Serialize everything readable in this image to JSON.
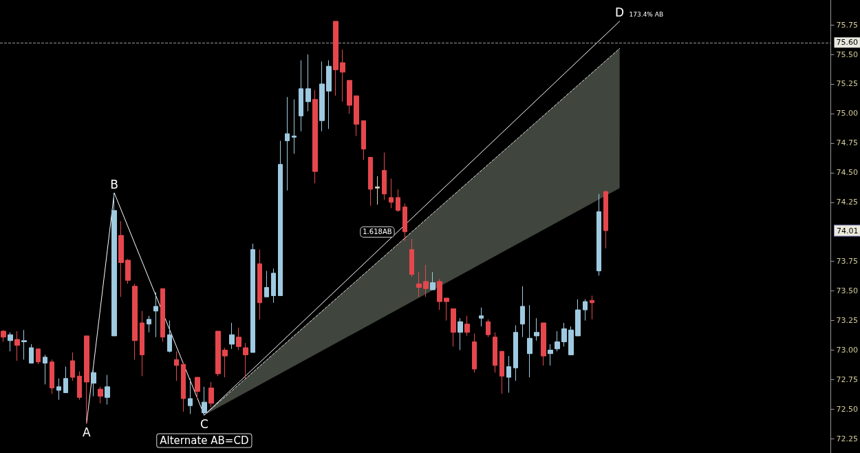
{
  "chart_data": {
    "type": "candlestick",
    "categories": [
      null,
      null,
      null,
      null,
      null,
      null,
      null,
      null,
      null,
      null,
      null,
      null,
      null,
      null,
      null,
      null,
      null,
      null,
      null,
      null,
      null,
      null,
      null,
      null,
      null,
      null,
      null,
      null,
      null,
      null,
      null,
      null,
      null,
      null,
      null,
      null,
      null,
      null,
      null,
      null,
      null,
      null,
      null,
      null,
      null,
      null,
      null,
      null,
      null,
      null,
      null,
      null,
      null,
      null,
      null,
      null,
      null,
      null,
      null,
      null,
      null,
      null,
      null,
      null,
      null,
      null,
      null,
      null,
      null,
      null,
      null,
      null,
      null,
      null,
      null,
      null,
      null,
      null,
      null,
      null,
      null,
      null,
      null,
      null,
      null,
      null,
      null,
      null,
      null,
      null,
      null,
      null,
      null,
      null,
      null,
      null,
      null,
      null,
      null,
      null,
      null,
      null,
      null,
      null,
      null,
      null,
      null,
      null,
      null,
      null,
      null,
      null,
      null,
      null,
      null,
      null,
      null,
      null,
      null,
      null
    ],
    "ylim": [
      72.13,
      75.96
    ],
    "yticks": [
      72.25,
      {
        "value": 72.5,
        "label": "72.50"
      },
      72.75,
      {
        "value": 73,
        "label": "73.00"
      },
      73.25,
      {
        "value": 73.5,
        "label": "73.50"
      },
      73.75,
      74.25,
      {
        "value": 74.5,
        "label": "74.50"
      },
      74.75,
      {
        "value": 75,
        "label": "75.00"
      },
      75.25,
      {
        "value": 75.5,
        "label": "75.50"
      },
      75.75
    ],
    "tick_labels": "y",
    "grid": false,
    "marker": "none",
    "series": [
      {
        "ohlc": [
          [
            73.16,
            73.17,
            73.07,
            73.11
          ],
          [
            73.08,
            73.15,
            72.99,
            73.13
          ],
          [
            73.09,
            73.16,
            72.91,
            73.04
          ],
          [
            73.07,
            73.17,
            72.92,
            73.08
          ],
          [
            72.89,
            73.05,
            72.89,
            73.02
          ],
          [
            73.01,
            73.01,
            72.88,
            72.9
          ],
          [
            72.89,
            72.96,
            72.71,
            72.94
          ],
          [
            72.9,
            72.92,
            72.63,
            72.68
          ],
          [
            72.66,
            72.76,
            72.58,
            72.69
          ],
          [
            72.64,
            72.86,
            72.64,
            72.76
          ],
          [
            72.91,
            72.98,
            72.74,
            72.77
          ],
          [
            72.78,
            72.82,
            72.58,
            72.6
          ],
          [
            73.12,
            73.12,
            72.38,
            72.73
          ],
          [
            72.72,
            72.84,
            72.61,
            72.81
          ],
          [
            72.67,
            72.69,
            72.55,
            72.61
          ],
          [
            72.6,
            72.79,
            72.54,
            72.69
          ],
          [
            73.12,
            74.33,
            73.12,
            74.18
          ],
          [
            73.97,
            74.09,
            73.45,
            73.74
          ],
          [
            73.76,
            73.77,
            73.56,
            73.59
          ],
          [
            73.54,
            73.56,
            72.92,
            73.08
          ],
          [
            73.23,
            73.33,
            72.78,
            72.96
          ],
          [
            73.22,
            73.29,
            73.15,
            73.26
          ],
          [
            73.33,
            73.49,
            73.11,
            73.37
          ],
          [
            73.52,
            73.52,
            73.07,
            73.11
          ],
          [
            72.99,
            73.25,
            72.98,
            73.13
          ],
          [
            72.92,
            72.99,
            72.74,
            72.87
          ],
          [
            72.88,
            72.89,
            72.48,
            72.59
          ],
          [
            72.53,
            72.76,
            72.46,
            72.59
          ],
          [
            72.77,
            72.77,
            72.59,
            72.65
          ],
          [
            72.47,
            72.69,
            72.45,
            72.56
          ],
          [
            72.68,
            72.73,
            72.52,
            72.55
          ],
          [
            73.16,
            73.16,
            72.78,
            72.8
          ],
          [
            73.0,
            73.02,
            72.77,
            72.95
          ],
          [
            73.05,
            73.23,
            73.01,
            73.13
          ],
          [
            73.11,
            73.19,
            73.0,
            73.03
          ],
          [
            73.02,
            73.06,
            72.76,
            72.96
          ],
          [
            72.98,
            73.9,
            72.98,
            73.85
          ],
          [
            73.73,
            73.85,
            73.26,
            73.4
          ],
          [
            73.45,
            73.67,
            73.45,
            73.53
          ],
          [
            73.46,
            73.69,
            73.4,
            73.65
          ],
          [
            73.46,
            74.77,
            73.46,
            74.57
          ],
          [
            74.77,
            75.14,
            74.35,
            74.83
          ],
          [
            74.8,
            75.12,
            74.66,
            74.81
          ],
          [
            74.98,
            75.45,
            74.85,
            75.21
          ],
          [
            75.1,
            75.5,
            75.02,
            75.21
          ],
          [
            75.12,
            75.2,
            74.41,
            74.51
          ],
          [
            74.94,
            75.44,
            74.85,
            75.25
          ],
          [
            75.19,
            75.45,
            74.87,
            75.4
          ],
          [
            75.78,
            75.78,
            75.15,
            75.37
          ],
          [
            75.43,
            75.54,
            75.1,
            75.35
          ],
          [
            75.28,
            75.28,
            75.0,
            75.07
          ],
          [
            75.15,
            75.15,
            74.81,
            74.91
          ],
          [
            74.94,
            74.94,
            74.61,
            74.7
          ],
          [
            74.63,
            74.63,
            74.22,
            74.36
          ],
          [
            74.37,
            74.47,
            74.23,
            74.38
          ],
          [
            74.52,
            74.67,
            74.27,
            74.32
          ],
          [
            74.29,
            74.45,
            74.2,
            74.25
          ],
          [
            74.29,
            74.36,
            74.17,
            74.18
          ],
          [
            74.21,
            74.24,
            73.92,
            74.0
          ],
          [
            73.85,
            73.94,
            73.62,
            73.64
          ],
          [
            73.56,
            73.66,
            73.45,
            73.53
          ],
          [
            73.58,
            73.72,
            73.45,
            73.52
          ],
          [
            73.51,
            73.66,
            73.51,
            73.57
          ],
          [
            73.58,
            73.6,
            73.34,
            73.41
          ],
          [
            73.44,
            73.44,
            73.25,
            73.41
          ],
          [
            73.35,
            73.35,
            73.03,
            73.15
          ],
          [
            73.15,
            73.27,
            73.0,
            73.24
          ],
          [
            73.22,
            73.29,
            73.12,
            73.15
          ],
          [
            73.07,
            73.14,
            72.81,
            72.84
          ],
          [
            73.27,
            73.36,
            73.2,
            73.29
          ],
          [
            73.24,
            73.26,
            73.11,
            73.13
          ],
          [
            73.11,
            73.15,
            72.81,
            72.87
          ],
          [
            72.99,
            72.99,
            72.63,
            72.78
          ],
          [
            72.77,
            72.95,
            72.64,
            72.86
          ],
          [
            72.85,
            73.21,
            72.74,
            73.15
          ],
          [
            73.22,
            73.54,
            73.11,
            73.37
          ],
          [
            72.97,
            73.38,
            72.77,
            73.1
          ],
          [
            73.12,
            73.27,
            73.08,
            73.15
          ],
          [
            73.23,
            73.23,
            72.87,
            72.95
          ],
          [
            72.97,
            73.05,
            72.87,
            73.0
          ],
          [
            73.01,
            73.16,
            72.99,
            73.07
          ],
          [
            73.07,
            73.23,
            73.03,
            73.18
          ],
          [
            72.96,
            73.2,
            72.96,
            73.17
          ],
          [
            73.12,
            73.43,
            73.12,
            73.34
          ],
          [
            73.34,
            73.43,
            73.25,
            73.41
          ],
          [
            73.42,
            73.46,
            73.26,
            73.4
          ],
          [
            73.67,
            74.32,
            73.63,
            74.17
          ],
          [
            74.34,
            74.35,
            73.86,
            74.01
          ],
          null,
          null,
          null,
          null,
          null,
          null,
          null,
          null,
          null,
          null,
          null,
          null,
          null,
          null,
          null,
          null,
          null,
          null,
          null,
          null,
          null,
          null,
          null,
          null,
          null,
          null,
          null,
          null,
          null,
          null,
          null,
          null
        ],
        "colors": [
          "#e5474d",
          "#9ecae1",
          "#e5474d",
          "#9ecae1",
          "#9ecae1",
          "#e5474d",
          "#9ecae1",
          "#e5474d",
          "#9ecae1",
          "#9ecae1",
          "#e5474d",
          "#e5474d",
          "#e5474d",
          "#9ecae1",
          "#e5474d",
          "#9ecae1",
          "#9ecae1",
          "#e5474d",
          "#e5474d",
          "#e5474d",
          "#e5474d",
          "#9ecae1",
          "#9ecae1",
          "#e5474d",
          "#9ecae1",
          "#e5474d",
          "#e5474d",
          "#9ecae1",
          "#e5474d",
          "#9ecae1",
          "#e5474d",
          "#e5474d",
          "#e5474d",
          "#9ecae1",
          "#e5474d",
          "#e5474d",
          "#9ecae1",
          "#e5474d",
          "#9ecae1",
          "#9ecae1",
          "#9ecae1",
          "#9ecae1",
          "#9ecae1",
          "#9ecae1",
          "#9ecae1",
          "#e5474d",
          "#9ecae1",
          "#9ecae1",
          "#e5474d",
          "#e5474d",
          "#e5474d",
          "#e5474d",
          "#e5474d",
          "#e5474d",
          "#d8d4c0",
          "#e5474d",
          "#e5474d",
          "#e5474d",
          "#e5474d",
          "#e5474d",
          "#e5474d",
          "#e5474d",
          "#9ecae1",
          "#e5474d",
          "#e5474d",
          "#e5474d",
          "#9ecae1",
          "#e5474d",
          "#e5474d",
          "#9ecae1",
          "#e5474d",
          "#e5474d",
          "#e5474d",
          "#9ecae1",
          "#9ecae1",
          "#9ecae1",
          "#9ecae1",
          "#9ecae1",
          "#e5474d",
          "#9ecae1",
          "#9ecae1",
          "#9ecae1",
          "#9ecae1",
          "#9ecae1",
          "#9ecae1",
          "#e5474d",
          "#9ecae1",
          "#e5474d",
          null,
          null,
          null,
          null,
          null,
          null,
          null,
          null,
          null,
          null,
          null,
          null,
          null,
          null,
          null,
          null,
          null,
          null,
          null,
          null,
          null,
          null,
          null,
          null,
          null,
          null,
          null,
          null,
          null,
          null,
          null,
          null
        ]
      },
      {
        "type": "line",
        "color": "#ffffff",
        "line_style": "solid",
        "values": [
          null,
          null,
          null,
          null,
          null,
          null,
          null,
          null,
          null,
          null,
          null,
          null,
          72.38,
          null,
          null,
          null,
          74.33,
          null,
          null,
          null,
          null,
          null,
          null,
          null,
          null,
          null,
          null,
          null,
          null,
          72.45,
          null,
          null,
          null,
          null,
          null,
          null,
          null,
          null,
          null,
          null,
          null,
          null,
          null,
          null,
          null,
          null,
          null,
          null,
          null,
          null,
          null,
          null,
          null,
          null,
          null,
          null,
          null,
          null,
          null,
          null,
          null,
          null,
          null,
          null,
          null,
          null,
          null,
          null,
          null,
          null,
          null,
          null,
          null,
          null,
          null,
          null,
          null,
          null,
          null,
          null,
          null,
          null,
          null,
          null,
          null,
          null,
          null,
          null,
          null,
          75.78,
          null,
          null,
          null,
          null,
          null,
          null,
          null,
          null,
          null,
          null,
          null,
          null,
          null,
          null,
          null,
          null,
          null,
          null,
          null,
          null,
          null,
          null,
          null,
          null,
          null,
          null,
          null,
          null,
          null,
          null
        ],
        "value_labels": [
          null,
          null,
          null,
          null,
          null,
          null,
          null,
          null,
          null,
          null,
          null,
          null,
          "A",
          null,
          null,
          null,
          "B",
          null,
          null,
          null,
          null,
          null,
          null,
          null,
          null,
          null,
          null,
          null,
          null,
          "C",
          null,
          null,
          null,
          null,
          null,
          null,
          null,
          null,
          null,
          null,
          null,
          null,
          null,
          null,
          null,
          null,
          null,
          null,
          null,
          null,
          null,
          null,
          null,
          null,
          null,
          null,
          null,
          null,
          null,
          null,
          null,
          null,
          null,
          null,
          null,
          null,
          null,
          null,
          null,
          null,
          null,
          null,
          null,
          null,
          null,
          null,
          null,
          null,
          null,
          null,
          null,
          null,
          null,
          null,
          null,
          null,
          null,
          null,
          null,
          "D",
          null,
          null,
          null,
          null,
          null,
          null,
          null,
          null,
          null,
          null,
          null,
          null,
          null,
          null,
          null,
          null,
          null,
          null,
          null,
          null,
          null,
          null,
          null,
          null,
          null,
          null,
          null,
          null,
          null,
          null
        ]
      },
      {
        "type": "line",
        "color": "#e0e0e0",
        "line_style": "dashed",
        "values": [
          null,
          null,
          null,
          null,
          null,
          null,
          null,
          null,
          null,
          null,
          null,
          null,
          null,
          null,
          null,
          null,
          null,
          null,
          null,
          null,
          null,
          null,
          null,
          null,
          null,
          null,
          null,
          null,
          null,
          72.45,
          null,
          null,
          null,
          null,
          null,
          null,
          null,
          null,
          null,
          null,
          null,
          null,
          null,
          null,
          null,
          null,
          null,
          null,
          null,
          null,
          null,
          null,
          null,
          null,
          null,
          null,
          null,
          null,
          null,
          null,
          null,
          null,
          null,
          null,
          null,
          null,
          null,
          null,
          null,
          null,
          null,
          null,
          null,
          null,
          null,
          null,
          null,
          null,
          null,
          null,
          null,
          null,
          null,
          null,
          null,
          null,
          null,
          null,
          null,
          75.55,
          null,
          null,
          null,
          null,
          null,
          null,
          null,
          null,
          null,
          null,
          null,
          null,
          null,
          null,
          null,
          null,
          null,
          null,
          null,
          null,
          null,
          null,
          null,
          null,
          null,
          null,
          null,
          null,
          null,
          null
        ],
        "lower": [
          null,
          null,
          null,
          null,
          null,
          null,
          null,
          null,
          null,
          null,
          null,
          null,
          null,
          null,
          null,
          null,
          null,
          null,
          null,
          null,
          null,
          null,
          null,
          null,
          null,
          null,
          null,
          null,
          null,
          72.45,
          null,
          null,
          null,
          null,
          null,
          null,
          null,
          null,
          null,
          null,
          null,
          null,
          null,
          null,
          null,
          null,
          null,
          null,
          null,
          null,
          null,
          null,
          null,
          null,
          null,
          null,
          null,
          null,
          null,
          null,
          null,
          null,
          null,
          null,
          null,
          null,
          null,
          null,
          null,
          null,
          null,
          null,
          null,
          null,
          null,
          null,
          null,
          null,
          null,
          null,
          null,
          null,
          null,
          null,
          null,
          null,
          null,
          null,
          null,
          74.37,
          null,
          null,
          null,
          null,
          null,
          null,
          null,
          null,
          null,
          null,
          null,
          null,
          null,
          null,
          null,
          null,
          null,
          null,
          null,
          null,
          null,
          null,
          null,
          null,
          null,
          null,
          null,
          null,
          null,
          null
        ],
        "upper": [
          null,
          null,
          null,
          null,
          null,
          null,
          null,
          null,
          null,
          null,
          null,
          null,
          null,
          null,
          null,
          null,
          null,
          null,
          null,
          null,
          null,
          null,
          null,
          null,
          null,
          null,
          null,
          null,
          null,
          72.45,
          null,
          null,
          null,
          null,
          null,
          null,
          null,
          null,
          null,
          null,
          null,
          null,
          null,
          null,
          null,
          null,
          null,
          null,
          null,
          null,
          null,
          null,
          null,
          null,
          null,
          null,
          null,
          null,
          null,
          null,
          null,
          null,
          null,
          null,
          null,
          null,
          null,
          null,
          null,
          null,
          null,
          null,
          null,
          null,
          null,
          null,
          null,
          null,
          null,
          null,
          null,
          null,
          null,
          null,
          null,
          null,
          null,
          null,
          null,
          75.55,
          null,
          null,
          null,
          null,
          null,
          null,
          null,
          null,
          null,
          null,
          null,
          null,
          null,
          null,
          null,
          null,
          null,
          null,
          null,
          null,
          null,
          null,
          null,
          null,
          null,
          null,
          null,
          null,
          null,
          null
        ]
      }
    ],
    "ref_lines": [
      {
        "axis": "y",
        "value": 75.6,
        "label": "75.60",
        "line_style": "dashed",
        "color": "#9a9a9a"
      }
    ],
    "annotations": [
      "173.4% AB",
      "1.618AB",
      "74.01",
      "Alternate AB=CD"
    ]
  }
}
